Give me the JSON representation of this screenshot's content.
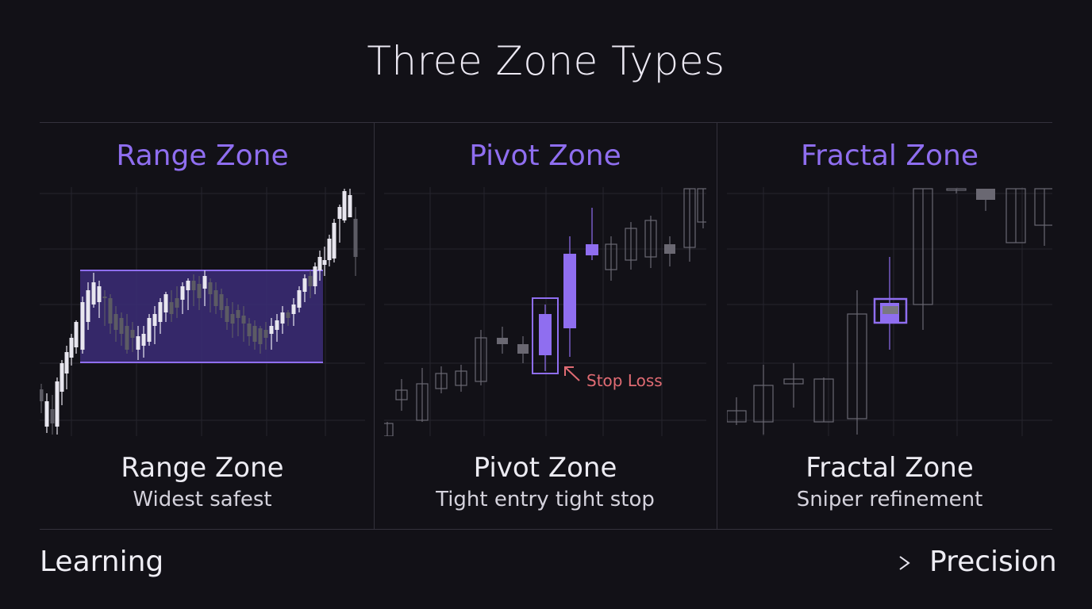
{
  "title": "Three Zone Types",
  "panels": [
    {
      "heading": "Range Zone",
      "name": "Range Zone",
      "subtitle": "Widest safest"
    },
    {
      "heading": "Pivot Zone",
      "name": "Pivot Zone",
      "subtitle": "Tight entry tight stop",
      "annotation": "Stop Loss"
    },
    {
      "heading": "Fractal Zone",
      "name": "Fractal Zone",
      "subtitle": "Sniper refinement"
    }
  ],
  "axis": {
    "start": "Learning",
    "end": "Precision"
  },
  "colors": {
    "accent": "#8f6ef0",
    "zone_fill": "#3c2d78",
    "candle_light": "#e8e6ef",
    "candle_gray": "#5c5b64",
    "stop_loss": "#e06b73",
    "background": "#121117"
  },
  "icons": {
    "stop_loss_arrow": "arrow-up-left-icon",
    "progress_arrow": "arrow-right-icon"
  }
}
